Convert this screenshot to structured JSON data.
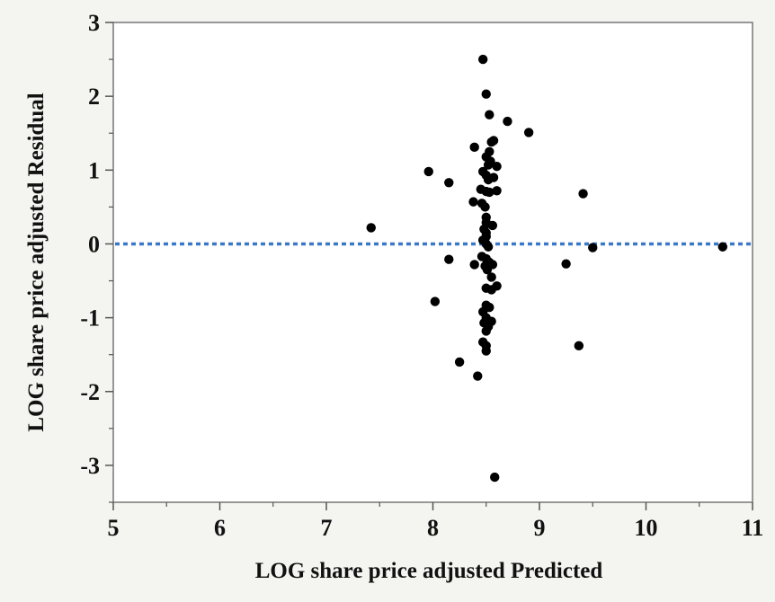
{
  "chart_data": {
    "type": "scatter",
    "title": "",
    "xlabel": "LOG share price adjusted Predicted",
    "ylabel": "LOG share price adjusted Residual",
    "xlim": [
      5,
      11
    ],
    "ylim": [
      -3.5,
      3
    ],
    "xticks": [
      5,
      6,
      7,
      8,
      9,
      10,
      11
    ],
    "yticks": [
      3,
      2,
      1,
      0,
      -1,
      -2,
      -3
    ],
    "xtick_labels": [
      "5",
      "6",
      "7",
      "8",
      "9",
      "10",
      "11"
    ],
    "ytick_labels": [
      "3",
      "2",
      "1",
      "0",
      "-1",
      "-2",
      "-3"
    ],
    "grid": false,
    "reference_line": {
      "y": 0,
      "style": "dotted",
      "color": "#3a78c9"
    },
    "marker_color": "#000000",
    "plot_background": "#ffffff",
    "series": [
      {
        "points": [
          [
            8.47,
            2.5
          ],
          [
            8.5,
            2.03
          ],
          [
            8.53,
            1.75
          ],
          [
            8.7,
            1.66
          ],
          [
            8.9,
            1.51
          ],
          [
            8.57,
            1.4
          ],
          [
            8.55,
            1.38
          ],
          [
            8.39,
            1.31
          ],
          [
            8.53,
            1.25
          ],
          [
            8.5,
            1.18
          ],
          [
            8.54,
            1.12
          ],
          [
            8.52,
            1.07
          ],
          [
            8.6,
            1.05
          ],
          [
            7.96,
            0.98
          ],
          [
            8.47,
            0.98
          ],
          [
            8.5,
            0.93
          ],
          [
            8.57,
            0.9
          ],
          [
            8.52,
            0.87
          ],
          [
            8.15,
            0.83
          ],
          [
            8.45,
            0.74
          ],
          [
            8.5,
            0.71
          ],
          [
            8.53,
            0.7
          ],
          [
            8.6,
            0.72
          ],
          [
            9.41,
            0.68
          ],
          [
            8.38,
            0.57
          ],
          [
            8.46,
            0.55
          ],
          [
            8.49,
            0.5
          ],
          [
            8.5,
            0.36
          ],
          [
            8.5,
            0.29
          ],
          [
            8.56,
            0.25
          ],
          [
            8.48,
            0.2
          ],
          [
            8.5,
            0.15
          ],
          [
            8.5,
            0.1
          ],
          [
            7.42,
            0.22
          ],
          [
            8.47,
            0.05
          ],
          [
            8.5,
            0.0
          ],
          [
            8.52,
            -0.04
          ],
          [
            9.5,
            -0.05
          ],
          [
            10.72,
            -0.04
          ],
          [
            8.46,
            -0.17
          ],
          [
            8.5,
            -0.2
          ],
          [
            8.53,
            -0.25
          ],
          [
            8.15,
            -0.21
          ],
          [
            8.39,
            -0.28
          ],
          [
            8.49,
            -0.3
          ],
          [
            8.56,
            -0.28
          ],
          [
            9.25,
            -0.27
          ],
          [
            8.51,
            -0.35
          ],
          [
            8.55,
            -0.45
          ],
          [
            8.6,
            -0.57
          ],
          [
            8.5,
            -0.6
          ],
          [
            8.55,
            -0.62
          ],
          [
            8.02,
            -0.78
          ],
          [
            8.5,
            -0.83
          ],
          [
            8.53,
            -0.86
          ],
          [
            8.47,
            -0.92
          ],
          [
            8.5,
            -1.0
          ],
          [
            8.55,
            -1.05
          ],
          [
            8.48,
            -1.07
          ],
          [
            8.52,
            -1.12
          ],
          [
            8.5,
            -1.18
          ],
          [
            8.47,
            -1.33
          ],
          [
            8.5,
            -1.38
          ],
          [
            9.37,
            -1.38
          ],
          [
            8.5,
            -1.45
          ],
          [
            8.25,
            -1.6
          ],
          [
            8.42,
            -1.79
          ],
          [
            8.58,
            -3.16
          ]
        ]
      }
    ]
  }
}
